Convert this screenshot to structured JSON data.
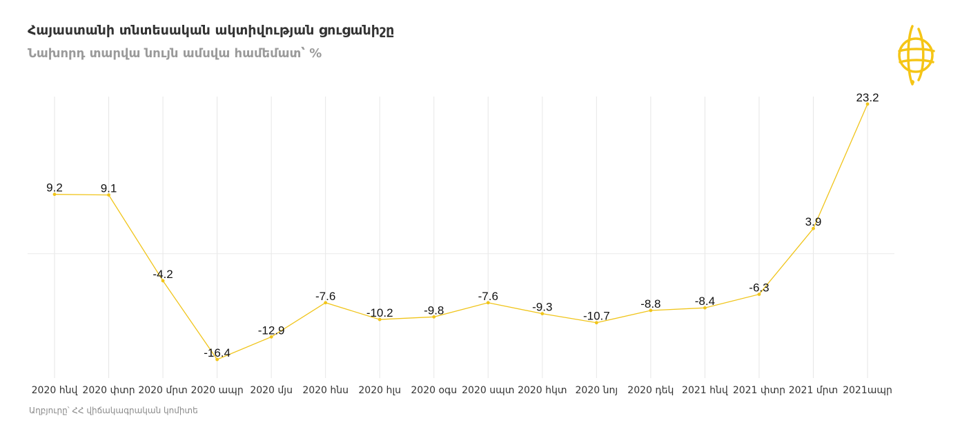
{
  "header": {
    "title": "Հայաստանի տնտեսական ակտիվության ցուցանիշը",
    "subtitle": "Նախորդ տարվա նույն ամսվա համեմատ՝ %"
  },
  "logo": {
    "icon": "globe-emblem-icon",
    "color": "#f5c516"
  },
  "footer": {
    "source": "Աղբյուրը՝ ՀՀ վիճակագրական կոմիտե"
  },
  "colors": {
    "line": "#f0c419",
    "grid": "#e6e6e6",
    "zero_line": "#e9e9e9",
    "label": "#111111"
  },
  "chart_data": {
    "type": "line",
    "title": "Հայաստանի տնտեսական ակտիվության ցուցանիշը",
    "subtitle": "Նախորդ տարվա նույն ամսվա համեմատ՝ %",
    "categories": [
      "2020 հնվ",
      "2020 փտր",
      "2020 մրտ",
      "2020 ապր",
      "2020 մյս",
      "2020 հնս",
      "2020 հլս",
      "2020 օգս",
      "2020 սպտ",
      "2020 հկտ",
      "2020 նոյ",
      "2020 դեկ",
      "2021 հնվ",
      "2021 փտր",
      "2021 մրտ",
      "2021ապր"
    ],
    "values": [
      9.2,
      9.1,
      -4.2,
      -16.4,
      -12.9,
      -7.6,
      -10.2,
      -9.8,
      -7.6,
      -9.3,
      -10.7,
      -8.8,
      -8.4,
      -6.3,
      3.9,
      23.2
    ],
    "data_labels": [
      "9.2",
      "9.1",
      "-4.2",
      "-16.4",
      "-12.9",
      "-7.6",
      "-10.2",
      "-9.8",
      "-7.6",
      "-9.3",
      "-10.7",
      "-8.8",
      "-8.4",
      "-6.3",
      "3.9",
      "23.2"
    ],
    "ylim": [
      -18.5,
      25.5
    ],
    "grid": "vertical",
    "legend": "none"
  }
}
